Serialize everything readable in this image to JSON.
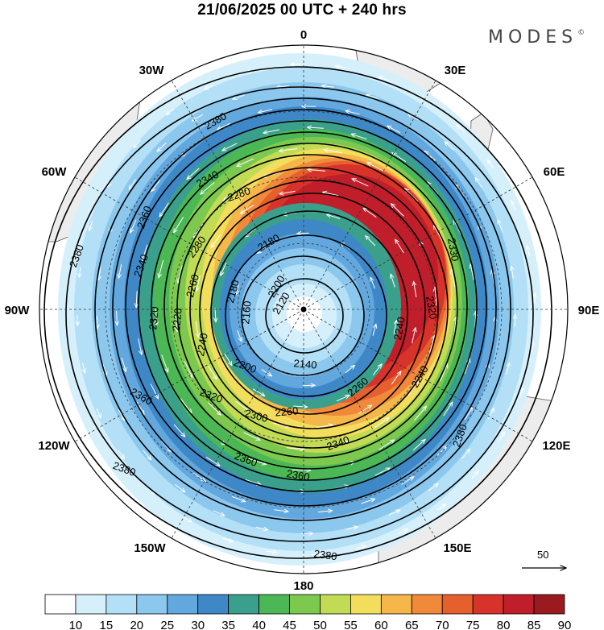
{
  "title": "21/06/2025  00 UTC  + 240 hrs",
  "brand": "MODES",
  "brand_mark": "©",
  "longitude_labels": [
    {
      "key": "0",
      "text": "0"
    },
    {
      "key": "30E",
      "text": "30E"
    },
    {
      "key": "60E",
      "text": "60E"
    },
    {
      "key": "90E",
      "text": "90E"
    },
    {
      "key": "120E",
      "text": "120E"
    },
    {
      "key": "150E",
      "text": "150E"
    },
    {
      "key": "180",
      "text": "180"
    },
    {
      "key": "150W",
      "text": "150W"
    },
    {
      "key": "120W",
      "text": "120W"
    },
    {
      "key": "90W",
      "text": "90W"
    },
    {
      "key": "60W",
      "text": "60W"
    },
    {
      "key": "30W",
      "text": "30W"
    }
  ],
  "contour_labels": [
    "2380",
    "2360",
    "2340",
    "2320",
    "2300",
    "2280",
    "2260",
    "2240",
    "2220",
    "2200",
    "2180",
    "2160",
    "2140",
    "2120"
  ],
  "vector_reference": "50",
  "colorbar": {
    "labels": [
      "10",
      "15",
      "20",
      "25",
      "30",
      "35",
      "40",
      "45",
      "50",
      "55",
      "60",
      "65",
      "70",
      "75",
      "80",
      "85",
      "90"
    ],
    "colors": [
      "#ffffff",
      "#d6f0fb",
      "#b3e0f7",
      "#8cc8ee",
      "#62a8de",
      "#3f88c8",
      "#3aa08c",
      "#4cb855",
      "#7dc950",
      "#c2db55",
      "#f2de5c",
      "#f5b64a",
      "#f08a3a",
      "#e6602e",
      "#d8332b",
      "#c01e2a",
      "#9a1a20"
    ]
  },
  "colors": {
    "land": "#ececec",
    "coast": "#555555",
    "contour": "#000000",
    "grid": "#333333"
  }
}
